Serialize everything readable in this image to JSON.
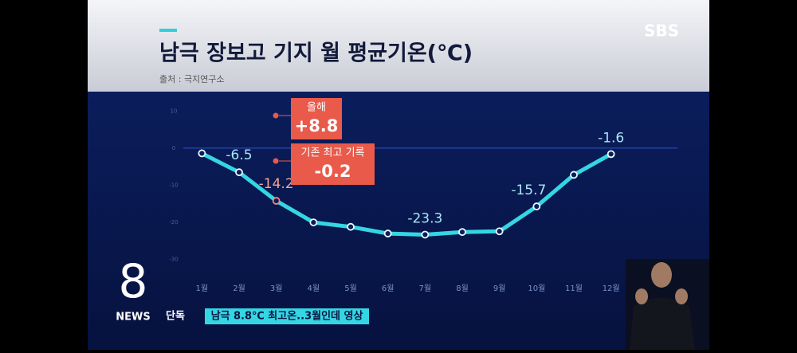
{
  "chart_data": {
    "type": "line",
    "title": "남극 장보고 기지 월 평균기온(℃)",
    "source": "출처 : 극지연구소",
    "categories": [
      "1월",
      "2월",
      "3월",
      "4월",
      "5월",
      "6월",
      "7월",
      "8월",
      "9월",
      "10월",
      "11월",
      "12월"
    ],
    "series": [
      {
        "name": "월 평균기온",
        "color": "#35d6e4",
        "values": [
          -1.4,
          -6.5,
          -14.2,
          -20.0,
          -21.2,
          -23.0,
          -23.3,
          -22.6,
          -22.4,
          -15.7,
          -7.2,
          -1.6
        ],
        "value_labels": [
          null,
          "-6.5",
          "-14.2",
          null,
          null,
          null,
          "-23.3",
          null,
          null,
          "-15.7",
          null,
          "-1.6"
        ],
        "point_colors": [
          "#35d6e4",
          "#35d6e4",
          "#f08a74",
          "#35d6e4",
          "#35d6e4",
          "#35d6e4",
          "#35d6e4",
          "#35d6e4",
          "#35d6e4",
          "#35d6e4",
          "#35d6e4",
          "#35d6e4"
        ]
      }
    ],
    "ylim": [
      12,
      -32
    ],
    "yticks": [
      10,
      0,
      -10,
      -20,
      -30
    ],
    "zero_line": true,
    "annotations": [
      {
        "label": "올해",
        "value": "+8.8"
      },
      {
        "label": "기존 최고 기록",
        "value": "-0.2"
      }
    ]
  },
  "broadcast": {
    "logo": "SBS",
    "program": "8",
    "program_sub": "NEWS",
    "tag": "단독",
    "ticker": "남극 8.8℃ 최고온..3월인데 영상"
  }
}
